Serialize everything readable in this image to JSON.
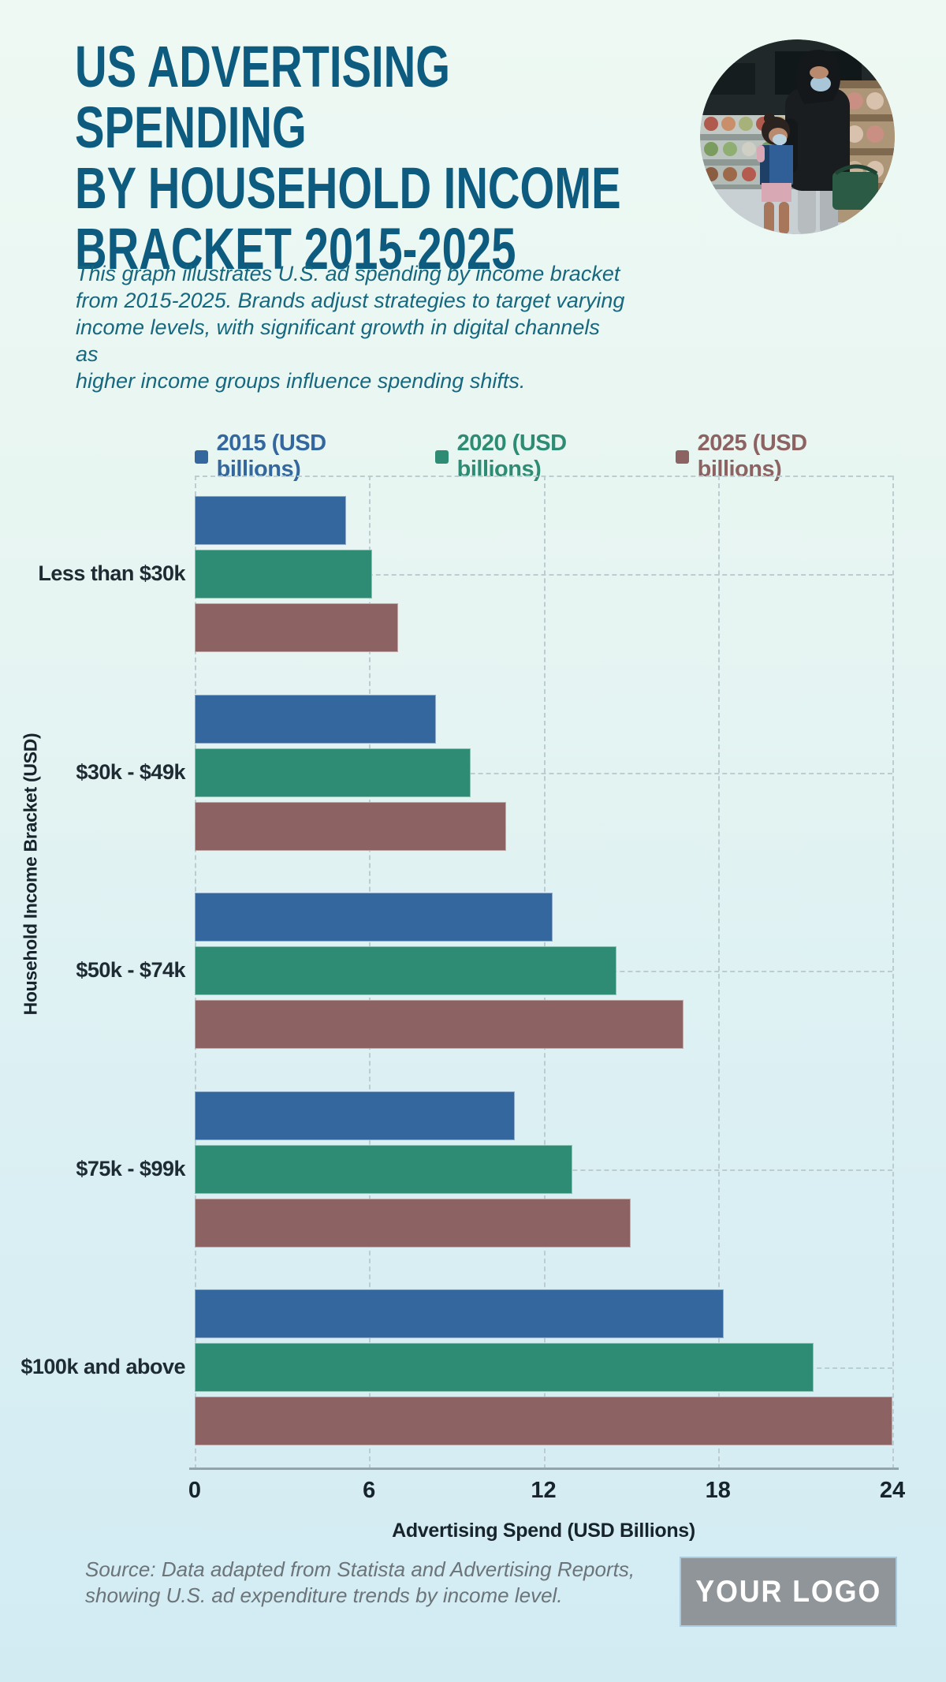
{
  "page": {
    "title": "US ADVERTISING SPENDING\nBY HOUSEHOLD INCOME\nBRACKET 2015-2025",
    "description": "This graph illustrates U.S. ad spending by income bracket\nfrom 2015-2025. Brands adjust strategies to target varying\nincome levels, with significant growth in digital channels as\nhigher income groups influence spending shifts.",
    "source": "Source: Data adapted from Statista and Advertising Reports,\nshowing U.S. ad expenditure trends by income level.",
    "logo": "YOUR LOGO"
  },
  "colors": {
    "title": "#0D5C80",
    "description": "#17687F",
    "text_dark": "#1E2B33",
    "muted_gray": "#6B7478",
    "logo_bg": "#8F9598",
    "logo_border": "#A9CBDD",
    "background_top": "#EEF9F3",
    "background_bottom": "#D2EBF3",
    "gridline": "#BCCDD1",
    "axis_line": "#93A5AB",
    "series_2015": "#35679F",
    "series_2020": "#2F8C74",
    "series_2025": "#8C6362"
  },
  "chart_data": {
    "type": "bar",
    "orientation": "horizontal",
    "title": "",
    "categories": [
      "Less than $30k",
      "$30k - $49k",
      "$50k - $74k",
      "$75k - $99k",
      "$100k and above"
    ],
    "series": [
      {
        "name": "2015 (USD billions)",
        "color": "#35679F",
        "values": [
          5.2,
          8.3,
          12.3,
          11.0,
          18.2
        ]
      },
      {
        "name": "2020 (USD billions)",
        "color": "#2F8C74",
        "values": [
          6.1,
          9.5,
          14.5,
          13.0,
          21.3
        ]
      },
      {
        "name": "2025 (USD billions)",
        "color": "#8C6362",
        "values": [
          7.0,
          10.7,
          16.8,
          15.0,
          24.0
        ]
      }
    ],
    "xlabel": "Advertising Spend (USD Billions)",
    "ylabel": "Household Income Bracket (USD)",
    "xlim": [
      0,
      24
    ],
    "xticks": [
      0,
      6,
      12,
      18,
      24
    ],
    "grid": "dashed",
    "legend_position": "top"
  }
}
